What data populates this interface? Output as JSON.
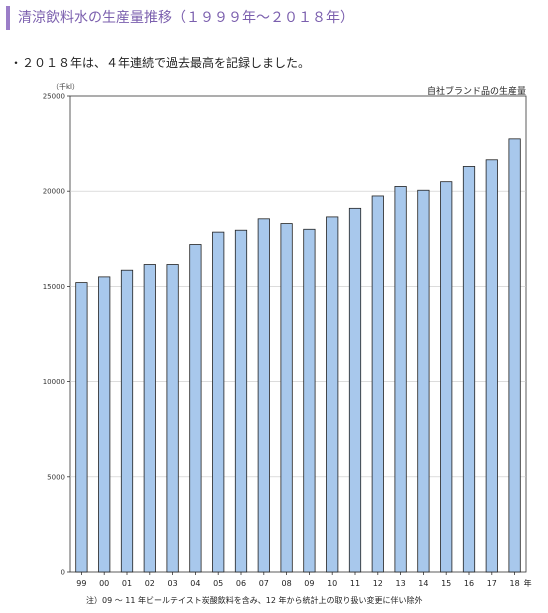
{
  "page": {
    "title": "清涼飲料水の生産量推移（１９９９年～２０１８年）",
    "bullet": "・２０１８年は、４年連続で過去最高を記録しました。"
  },
  "chart_data": {
    "type": "bar",
    "unit_label": "（千kl）",
    "legend_note": "自社ブランド品の生産量",
    "x_suffix": "年",
    "categories": [
      "99",
      "00",
      "01",
      "02",
      "03",
      "04",
      "05",
      "06",
      "07",
      "08",
      "09",
      "10",
      "11",
      "12",
      "13",
      "14",
      "15",
      "16",
      "17",
      "18"
    ],
    "values": [
      15200,
      15500,
      15850,
      16150,
      16150,
      17200,
      17850,
      17950,
      18550,
      18300,
      18000,
      18650,
      19100,
      19750,
      20250,
      20050,
      20500,
      21300,
      21650,
      22750
    ],
    "ylim": [
      0,
      25000
    ],
    "yticks": [
      0,
      5000,
      10000,
      15000,
      20000,
      25000
    ],
    "grid": true,
    "bar_color": "#a8c8ec",
    "footnote": "注）09 ～ 11 年ビールテイスト炭酸飲料を含み、12 年から統計上の取り扱い変更に伴い除外"
  }
}
